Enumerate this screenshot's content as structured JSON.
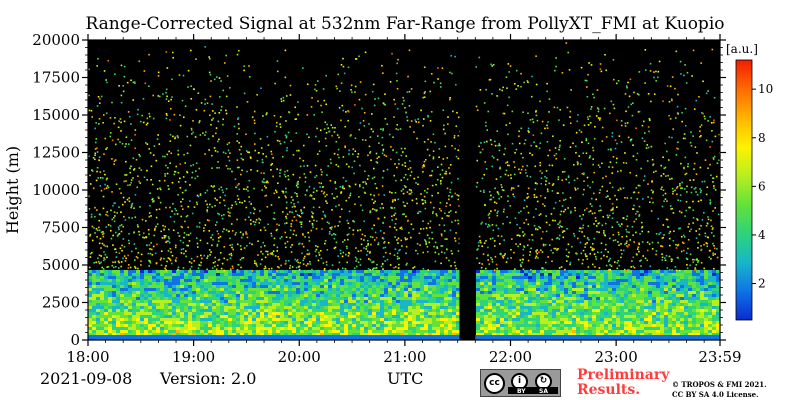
{
  "chart_data": {
    "type": "heatmap",
    "title": "Range-Corrected Signal at 532nm Far-Range from PollyXT_FMI at Kuopio",
    "xlabel": "UTC",
    "ylabel": "Height (m)",
    "x_tick_labels": [
      "18:00",
      "19:00",
      "20:00",
      "21:00",
      "22:00",
      "23:00",
      "23:59"
    ],
    "x_range": [
      "18:00",
      "23:59"
    ],
    "y_ticks": [
      0,
      2500,
      5000,
      7500,
      10000,
      12500,
      15000,
      17500,
      20000
    ],
    "y_range": [
      0,
      20000
    ],
    "colorbar": {
      "unit_label": "[a.u.]",
      "ticks": [
        2,
        4,
        6,
        8,
        10
      ],
      "range": [
        0.5,
        11.2
      ],
      "colormap": [
        "#0a2bcf",
        "#0f73e6",
        "#17b7c9",
        "#2fd37a",
        "#63e23a",
        "#b8ef1f",
        "#fff200",
        "#ffb400",
        "#ff6a00",
        "#f21d00"
      ]
    },
    "data_gaps": [
      {
        "from": "21:31",
        "to": "21:40"
      }
    ],
    "background_color": "#000000"
  },
  "footer": {
    "date": "2021-09-08",
    "version": "Version: 2.0",
    "utc_label": "UTC",
    "preliminary_line1": "Preliminary",
    "preliminary_line2": "Results.",
    "copyright_line1": "© TROPOS & FMI 2021.",
    "copyright_line2": "CC BY SA 4.0 License.",
    "license_badge": {
      "cc": "cc",
      "by": "BY",
      "sa": "SA"
    }
  }
}
